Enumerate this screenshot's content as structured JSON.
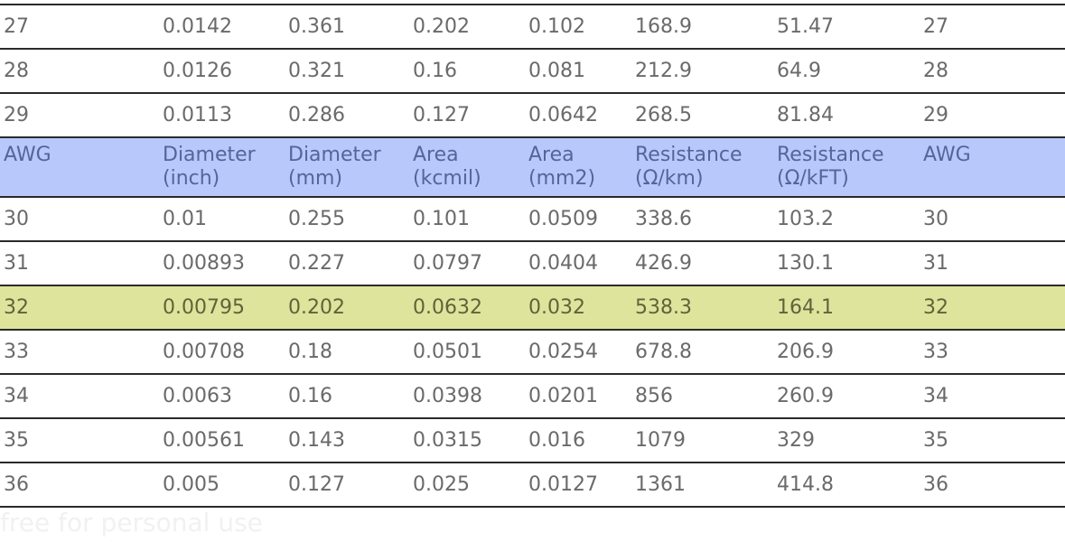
{
  "table": {
    "header": [
      [
        "AWG"
      ],
      [
        "Diameter",
        "(inch)"
      ],
      [
        "Diameter",
        "(mm)"
      ],
      [
        "Area",
        "(kcmil)"
      ],
      [
        "Area",
        "(mm2)"
      ],
      [
        "Resistance",
        "(Ω/km)"
      ],
      [
        "Resistance",
        "(Ω/kFT)"
      ],
      [
        "AWG"
      ]
    ],
    "rows_before_header": [
      [
        "27",
        "0.0142",
        "0.361",
        "0.202",
        "0.102",
        "168.9",
        "51.47",
        "27"
      ],
      [
        "28",
        "0.0126",
        "0.321",
        "0.16",
        "0.081",
        "212.9",
        "64.9",
        "28"
      ],
      [
        "29",
        "0.0113",
        "0.286",
        "0.127",
        "0.0642",
        "268.5",
        "81.84",
        "29"
      ]
    ],
    "rows_after_header": [
      [
        "30",
        "0.01",
        "0.255",
        "0.101",
        "0.0509",
        "338.6",
        "103.2",
        "30"
      ],
      [
        "31",
        "0.00893",
        "0.227",
        "0.0797",
        "0.0404",
        "426.9",
        "130.1",
        "31"
      ],
      [
        "32",
        "0.00795",
        "0.202",
        "0.0632",
        "0.032",
        "538.3",
        "164.1",
        "32"
      ],
      [
        "33",
        "0.00708",
        "0.18",
        "0.0501",
        "0.0254",
        "678.8",
        "206.9",
        "33"
      ],
      [
        "34",
        "0.0063",
        "0.16",
        "0.0398",
        "0.0201",
        "856",
        "260.9",
        "34"
      ],
      [
        "35",
        "0.00561",
        "0.143",
        "0.0315",
        "0.016",
        "1079",
        "329",
        "35"
      ],
      [
        "36",
        "0.005",
        "0.127",
        "0.025",
        "0.0127",
        "1361",
        "414.8",
        "36"
      ]
    ],
    "highlighted_awg": "32",
    "colors": {
      "header_background": "#b8c8fb",
      "highlight_background": "#dfe49c"
    }
  },
  "watermark": {
    "text": "free for personal use"
  }
}
